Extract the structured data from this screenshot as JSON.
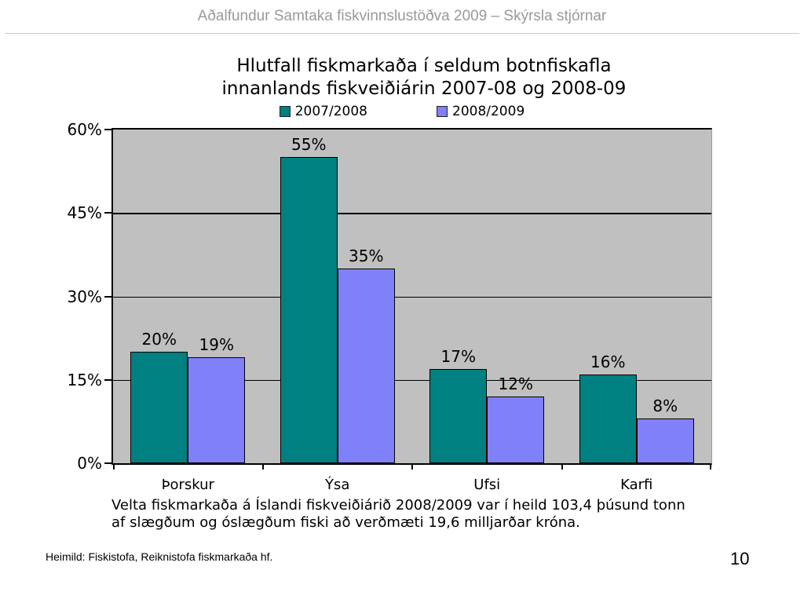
{
  "header": {
    "title": "Aðalfundur Samtaka fiskvinnslustöðva 2009 – Skýrsla stjórnar"
  },
  "chart_data": {
    "type": "bar",
    "title": "Hlutfall fiskmarkaða í seldum botnfiskafla\ninnanlands fiskveiðiárin 2007-08 og 2008-09",
    "categories": [
      "Þorskur",
      "Ýsa",
      "Ufsi",
      "Karfi"
    ],
    "series": [
      {
        "name": "2007/2008",
        "color": "#008080",
        "values": [
          20,
          55,
          17,
          16
        ]
      },
      {
        "name": "2008/2009",
        "color": "#8080FA",
        "values": [
          19,
          35,
          12,
          8
        ]
      }
    ],
    "value_label_suffix": "%",
    "ylim": [
      0,
      60
    ],
    "y_ticks": [
      0,
      15,
      30,
      45,
      60
    ],
    "y_tick_suffix": "%",
    "grid": true,
    "plot_background": "#C0C0C0",
    "legend_position": "top"
  },
  "caption": {
    "text": "Velta fiskmarkaða á Íslandi fiskveiðiárið 2008/2009 var í heild 103,4 þúsund tonn\naf slægðum og óslægðum fiski að verðmæti 19,6 milljarðar króna."
  },
  "footer": {
    "source": "Heimild: Fiskistofa, Reiknistofa fiskmarkaða hf.",
    "page_number": "10"
  }
}
